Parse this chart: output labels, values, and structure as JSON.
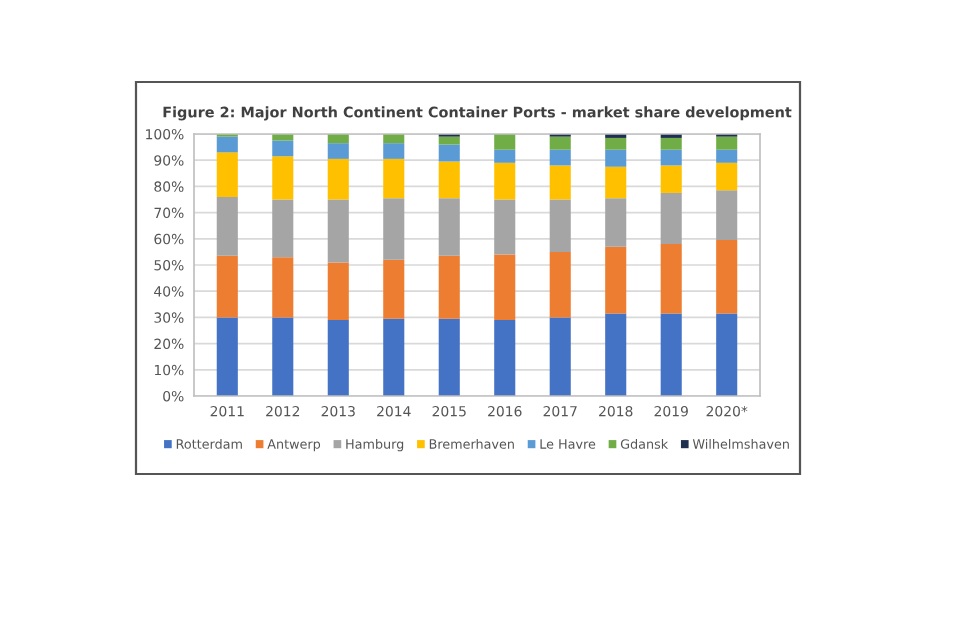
{
  "chart_data": {
    "type": "bar",
    "stacked": true,
    "title": "Figure 2: Major North Continent Container Ports - market share development",
    "categories": [
      "2011",
      "2012",
      "2013",
      "2014",
      "2015",
      "2016",
      "2017",
      "2018",
      "2019",
      "2020*"
    ],
    "series": [
      {
        "name": "Rotterdam",
        "color": "#4472c4",
        "values": [
          30,
          30,
          29,
          29.5,
          29.5,
          29,
          30,
          31.5,
          31.5,
          31.5
        ]
      },
      {
        "name": "Antwerp",
        "color": "#ed7d31",
        "values": [
          23.5,
          23,
          22,
          22.5,
          24,
          25,
          25,
          25.5,
          26.5,
          28
        ]
      },
      {
        "name": "Hamburg",
        "color": "#a5a5a5",
        "values": [
          22.5,
          22,
          24,
          23.5,
          22,
          21,
          20,
          18.5,
          19.5,
          19
        ]
      },
      {
        "name": "Bremerhaven",
        "color": "#ffc000",
        "values": [
          17,
          16.5,
          15.5,
          15,
          14,
          14,
          13,
          12,
          10.5,
          10.5
        ]
      },
      {
        "name": "Le Havre",
        "color": "#5b9bd5",
        "values": [
          6,
          6,
          6,
          6,
          6.5,
          5,
          6,
          6.5,
          6,
          5
        ]
      },
      {
        "name": "Gdansk",
        "color": "#70ad47",
        "values": [
          1,
          2.5,
          3.5,
          3.5,
          3,
          6,
          5,
          4.5,
          4.5,
          5
        ]
      },
      {
        "name": "Wilhelmshaven",
        "color": "#1f2f4f",
        "values": [
          0,
          0,
          0,
          0,
          1,
          0,
          1,
          1.5,
          1.5,
          1
        ]
      }
    ],
    "ylim": [
      0,
      100
    ],
    "yticks": [
      {
        "value": 0,
        "label": "0%"
      },
      {
        "value": 10,
        "label": "10%"
      },
      {
        "value": 20,
        "label": "20%"
      },
      {
        "value": 30,
        "label": "30%"
      },
      {
        "value": 40,
        "label": "40%"
      },
      {
        "value": 50,
        "label": "50%"
      },
      {
        "value": 60,
        "label": "60%"
      },
      {
        "value": 70,
        "label": "70%"
      },
      {
        "value": 80,
        "label": "80%"
      },
      {
        "value": 90,
        "label": "90%"
      },
      {
        "value": 100,
        "label": "100%"
      }
    ],
    "grid": "y",
    "legend": "bottom"
  }
}
